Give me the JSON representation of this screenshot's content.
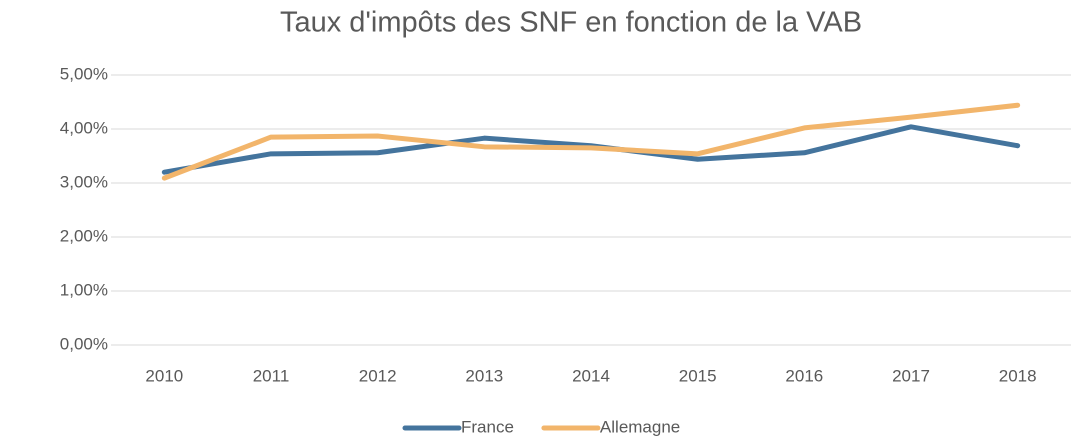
{
  "chart_data": {
    "type": "line",
    "title": "Taux d'impôts des SNF en fonction de la VAB",
    "categories": [
      "2010",
      "2011",
      "2012",
      "2013",
      "2014",
      "2015",
      "2016",
      "2017",
      "2018"
    ],
    "series": [
      {
        "name": "France",
        "color": "#44749d",
        "values": [
          3.2,
          3.54,
          3.56,
          3.83,
          3.69,
          3.44,
          3.56,
          4.04,
          3.69
        ]
      },
      {
        "name": "Allemagne",
        "color": "#f2b56b",
        "values": [
          3.09,
          3.85,
          3.87,
          3.67,
          3.65,
          3.54,
          4.02,
          4.22,
          4.44
        ]
      }
    ],
    "ylim": [
      0,
      5
    ],
    "yticks": [
      {
        "value": 0,
        "label": "0,00%"
      },
      {
        "value": 1,
        "label": "1,00%"
      },
      {
        "value": 2,
        "label": "2,00%"
      },
      {
        "value": 3,
        "label": "3,00%"
      },
      {
        "value": 4,
        "label": "4,00%"
      },
      {
        "value": 5,
        "label": "5,00%"
      }
    ],
    "grid": true,
    "legend": "bottom"
  }
}
